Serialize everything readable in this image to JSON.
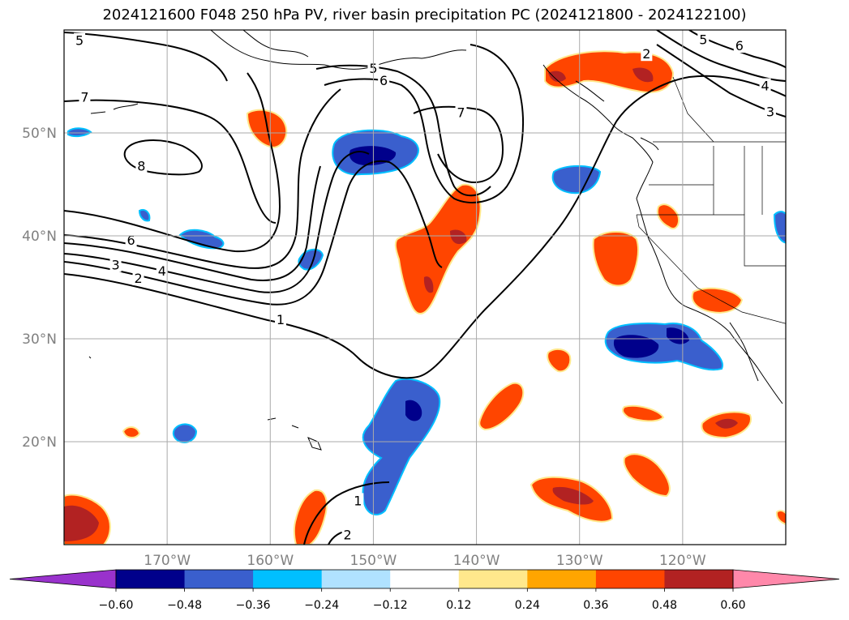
{
  "title": "2024121600 F048 250 hPa PV, river basin precipitation PC (2024121800 - 2024122100)",
  "map": {
    "projection": "PlateCarree",
    "lon_range": [
      -180,
      -110
    ],
    "lat_range": [
      10,
      60
    ],
    "gridlines": true,
    "lat_ticks": [
      {
        "value": 20,
        "label": "20°N"
      },
      {
        "value": 30,
        "label": "30°N"
      },
      {
        "value": 40,
        "label": "40°N"
      },
      {
        "value": 50,
        "label": "50°N"
      }
    ],
    "lon_ticks": [
      {
        "value": -170,
        "label": "170°W"
      },
      {
        "value": -160,
        "label": "160°W"
      },
      {
        "value": -150,
        "label": "150°W"
      },
      {
        "value": -140,
        "label": "140°W"
      },
      {
        "value": -130,
        "label": "130°W"
      },
      {
        "value": -120,
        "label": "120°W"
      }
    ]
  },
  "pv_contours": {
    "levels": [
      1,
      2,
      3,
      4,
      5,
      6,
      7,
      8
    ],
    "color": "#000000",
    "labels": [
      {
        "text": "5",
        "lon": -178.5,
        "lat": 59.0
      },
      {
        "text": "7",
        "lon": -178.0,
        "lat": 53.5
      },
      {
        "text": "8",
        "lon": -172.5,
        "lat": 46.8
      },
      {
        "text": "6",
        "lon": -173.5,
        "lat": 39.6
      },
      {
        "text": "3",
        "lon": -175.0,
        "lat": 37.2
      },
      {
        "text": "4",
        "lon": -170.5,
        "lat": 36.6
      },
      {
        "text": "2",
        "lon": -172.8,
        "lat": 35.9
      },
      {
        "text": "1",
        "lon": -159.0,
        "lat": 31.9
      },
      {
        "text": "5",
        "lon": -150.0,
        "lat": 56.3
      },
      {
        "text": "6",
        "lon": -149.0,
        "lat": 55.1
      },
      {
        "text": "7",
        "lon": -141.5,
        "lat": 52.0
      },
      {
        "text": "2",
        "lon": -123.5,
        "lat": 57.7
      },
      {
        "text": "5",
        "lon": -118.0,
        "lat": 59.1
      },
      {
        "text": "6",
        "lon": -114.5,
        "lat": 58.5
      },
      {
        "text": "4",
        "lon": -112.0,
        "lat": 54.6
      },
      {
        "text": "3",
        "lon": -111.5,
        "lat": 52.1
      },
      {
        "text": "1",
        "lon": -151.5,
        "lat": 14.3
      },
      {
        "text": "2",
        "lon": -152.5,
        "lat": 11.0
      }
    ]
  },
  "colorbar": {
    "extend": "both",
    "ticks": [
      "−0.60",
      "−0.48",
      "−0.36",
      "−0.24",
      "−0.12",
      "0.12",
      "0.24",
      "0.36",
      "0.48",
      "0.60"
    ],
    "colors": [
      "#9932cc",
      "#00008b",
      "#3a5fcd",
      "#00bfff",
      "#b0e2ff",
      "#ffffff",
      "#ffe88c",
      "#ffa500",
      "#ff4500",
      "#b22222",
      "#ff88aa"
    ]
  }
}
